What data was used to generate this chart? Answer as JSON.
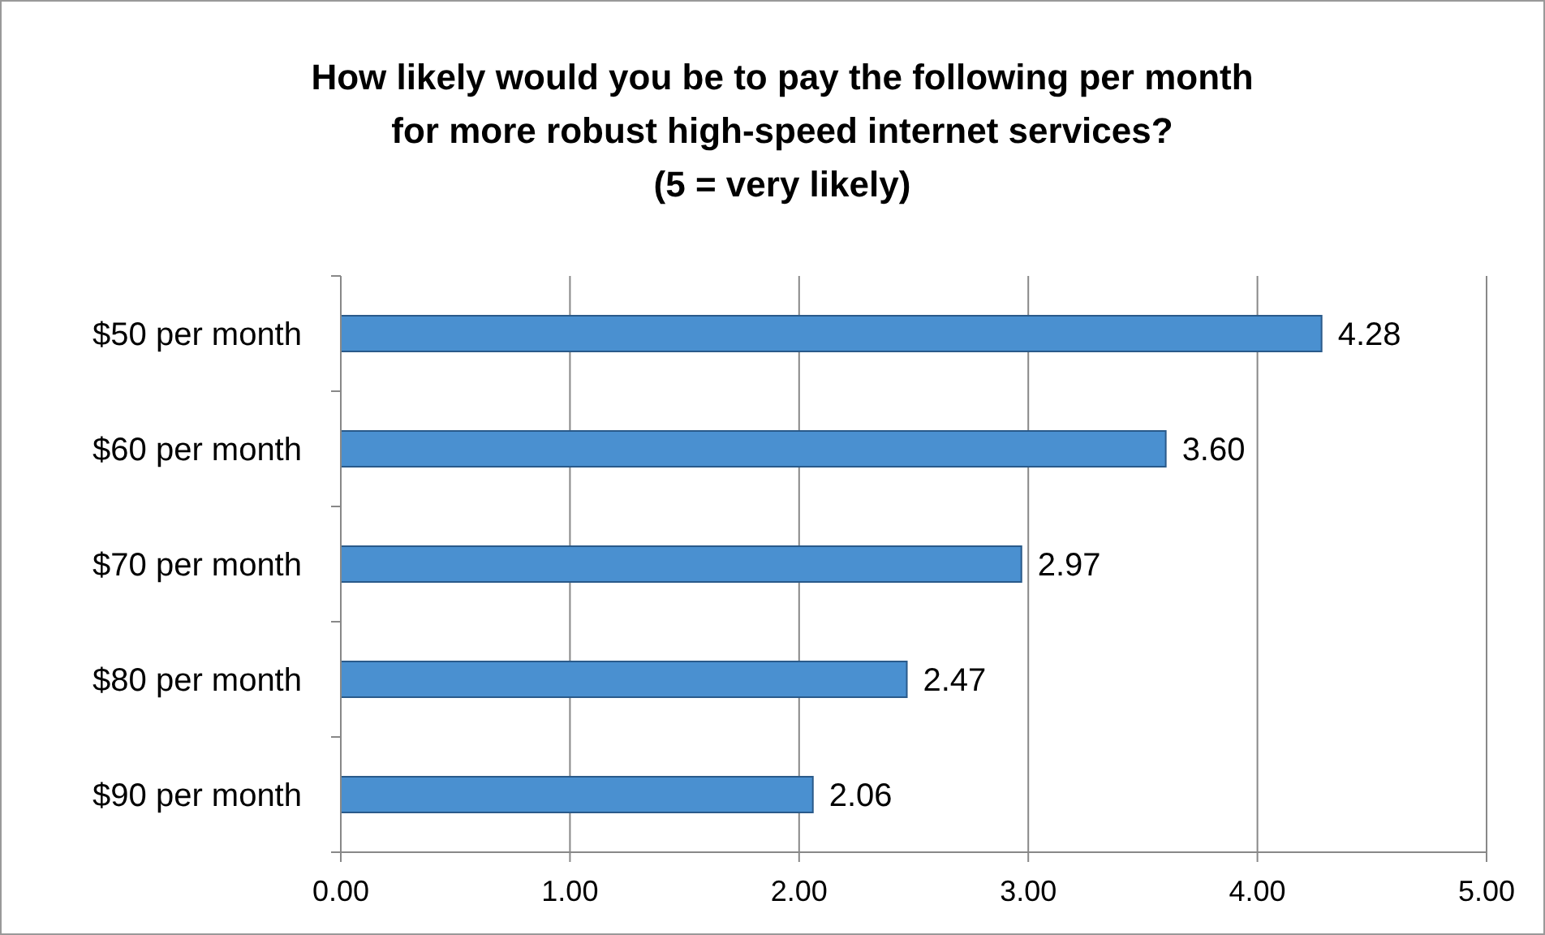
{
  "chart_data": {
    "type": "bar",
    "orientation": "horizontal",
    "title": "How likely would you be to pay the following per month\nfor more robust high-speed internet services?\n(5 = very likely)",
    "categories": [
      "$50 per month",
      "$60 per month",
      "$70 per month",
      "$80 per month",
      "$90 per month"
    ],
    "values": [
      4.28,
      3.6,
      2.97,
      2.47,
      2.06
    ],
    "value_labels": [
      "4.28",
      "3.60",
      "2.97",
      "2.47",
      "2.06"
    ],
    "color": "#4a90d0",
    "xlim": [
      0,
      5
    ],
    "xticks": [
      {
        "value": 0,
        "label": "0.00"
      },
      {
        "value": 1,
        "label": "1.00"
      },
      {
        "value": 2,
        "label": "2.00"
      },
      {
        "value": 3,
        "label": "3.00"
      },
      {
        "value": 4,
        "label": "4.00"
      },
      {
        "value": 5,
        "label": "5.00"
      }
    ],
    "grid": "x"
  }
}
